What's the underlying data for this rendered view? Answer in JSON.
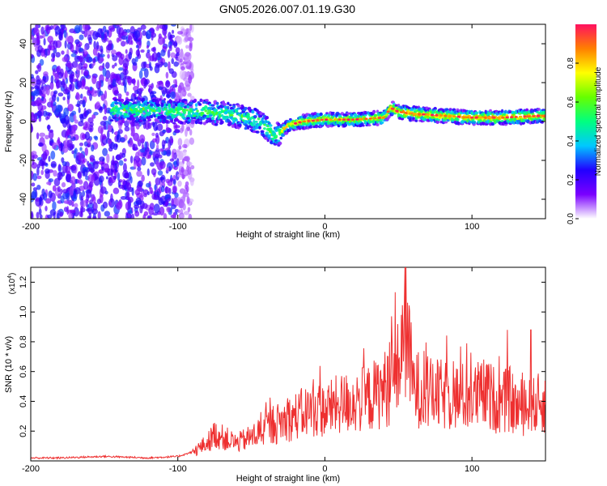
{
  "title": "GN05.2026.007.01.19.G30",
  "chart_data": [
    {
      "type": "heatmap",
      "xlabel": "Height of straight line (km)",
      "ylabel": "Frequency (Hz)",
      "xlim": [
        -200,
        150
      ],
      "ylim": [
        -50,
        50
      ],
      "xticks": [
        -200,
        -100,
        0,
        100
      ],
      "xtick_labels": [
        "-200",
        "-100",
        "0",
        "100"
      ],
      "yticks": [
        -40,
        -20,
        0,
        20,
        40
      ],
      "ytick_labels": [
        "-40",
        "-20",
        "0",
        "20",
        "40"
      ],
      "colorbar": {
        "label": "Normalized spectral amplitude",
        "range": [
          0,
          1
        ],
        "ticks": [
          0.0,
          0.2,
          0.4,
          0.6,
          0.8
        ],
        "tick_labels": [
          "0.0",
          "0.2",
          "0.4",
          "0.6",
          "0.8"
        ],
        "colors": [
          "#ffffff",
          "#7a00ff",
          "#2200ff",
          "#00c8ff",
          "#00ff80",
          "#66ff00",
          "#ffff00",
          "#ff8000",
          "#ff1060"
        ]
      },
      "ridge": {
        "x": [
          -145,
          -120,
          -100,
          -80,
          -60,
          -45,
          -38,
          -34,
          -25,
          -15,
          0,
          20,
          40,
          45,
          50,
          60,
          80,
          100,
          120,
          150
        ],
        "frequency": [
          6,
          6,
          5,
          5,
          3,
          0,
          -4,
          -8,
          -2,
          0,
          1,
          1,
          2,
          7,
          5,
          4,
          3,
          2,
          2,
          3
        ]
      }
    },
    {
      "type": "line",
      "xlabel": "Height of straight line (km)",
      "ylabel": "SNR (10 * v/v)",
      "y_multiplier_label": "(x10",
      "y_multiplier_exp": "4",
      "xlim": [
        -200,
        150
      ],
      "ylim": [
        0,
        1.3
      ],
      "xticks": [
        -200,
        -100,
        0,
        100
      ],
      "xtick_labels": [
        "-200",
        "-100",
        "0",
        "100"
      ],
      "yticks": [
        0.2,
        0.4,
        0.6,
        0.8,
        1.0,
        1.2
      ],
      "ytick_labels": [
        "0.2",
        "0.4",
        "0.6",
        "0.8",
        "1.0",
        "1.2"
      ],
      "color": "#ee3030",
      "series": [
        {
          "name": "SNR",
          "x": [
            -200,
            -180,
            -150,
            -120,
            -100,
            -90,
            -80,
            -75,
            -70,
            -60,
            -50,
            -40,
            -30,
            -20,
            -10,
            0,
            10,
            20,
            30,
            40,
            45,
            50,
            55,
            60,
            70,
            80,
            90,
            100,
            110,
            120,
            125,
            130,
            140,
            150
          ],
          "y": [
            0.02,
            0.02,
            0.03,
            0.02,
            0.03,
            0.06,
            0.12,
            0.18,
            0.16,
            0.12,
            0.16,
            0.22,
            0.26,
            0.3,
            0.34,
            0.34,
            0.38,
            0.4,
            0.42,
            0.48,
            0.52,
            0.62,
            0.9,
            0.5,
            0.45,
            0.44,
            0.43,
            0.43,
            0.45,
            0.38,
            0.42,
            0.36,
            0.36,
            0.4
          ]
        }
      ],
      "peaks": [
        {
          "x": 52,
          "y": 0.98
        },
        {
          "x": 55,
          "y": 1.3
        },
        {
          "x": 124,
          "y": 0.88
        },
        {
          "x": 140,
          "y": 0.88
        }
      ]
    }
  ]
}
